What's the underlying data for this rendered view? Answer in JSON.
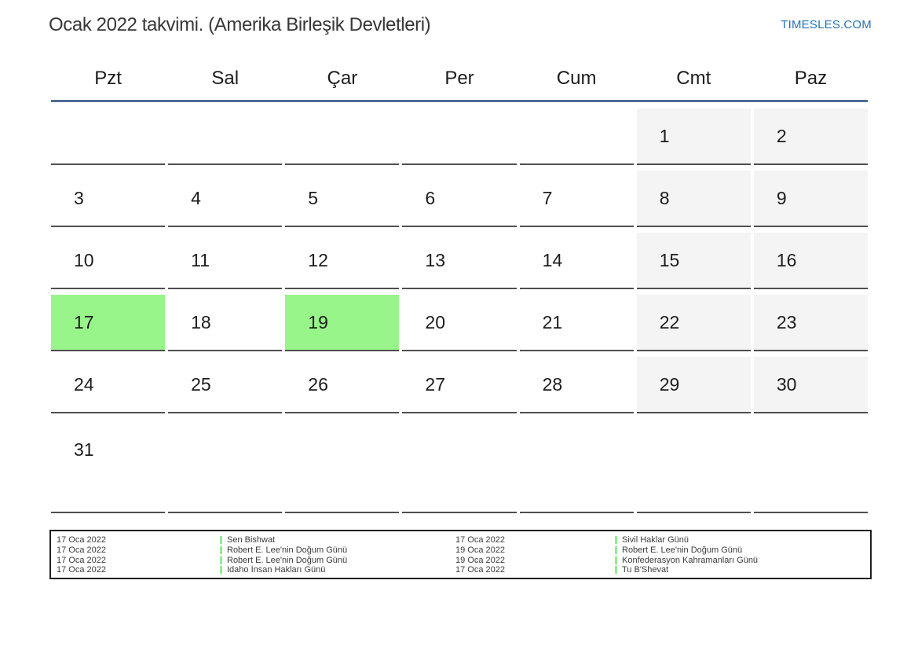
{
  "page": {
    "title": "Ocak 2022 takvimi. (Amerika Birleşik Devletleri)",
    "site_link": "TIMESLES.COM"
  },
  "calendar": {
    "weekday_headers": [
      "Pzt",
      "Sal",
      "Çar",
      "Per",
      "Cum",
      "Cmt",
      "Paz"
    ],
    "weeks": [
      [
        "",
        "",
        "",
        "",
        "",
        "1",
        "2"
      ],
      [
        "3",
        "4",
        "5",
        "6",
        "7",
        "8",
        "9"
      ],
      [
        "10",
        "11",
        "12",
        "13",
        "14",
        "15",
        "16"
      ],
      [
        "17",
        "18",
        "19",
        "20",
        "21",
        "22",
        "23"
      ],
      [
        "24",
        "25",
        "26",
        "27",
        "28",
        "29",
        "30"
      ],
      [
        "31",
        "",
        "",
        "",
        "",
        "",
        ""
      ]
    ],
    "highlighted_days": [
      "17",
      "19"
    ],
    "colors": {
      "highlight_green": "#98f58a",
      "weekend_background": "#f4f4f4",
      "header_line_blue": "#4a6d94",
      "cell_border_gray": "#4f4f4f",
      "link_blue": "#2472b8",
      "legend_marker_green": "#90ee90"
    }
  },
  "legend": {
    "entries_left": [
      {
        "date": "17 Oca 2022",
        "name": "Sen Bishwat"
      },
      {
        "date": "17 Oca 2022",
        "name": "Robert E. Lee'nin Doğum Günü"
      },
      {
        "date": "17 Oca 2022",
        "name": "Robert E. Lee'nin Doğum Günü"
      },
      {
        "date": "17 Oca 2022",
        "name": "Idaho İnsan Hakları Günü"
      }
    ],
    "entries_right": [
      {
        "date": "17 Oca 2022",
        "name": "Sivil Haklar Günü"
      },
      {
        "date": "19 Oca 2022",
        "name": "Robert E. Lee'nin Doğum Günü"
      },
      {
        "date": "19 Oca 2022",
        "name": "Konfederasyon Kahramanları Günü"
      },
      {
        "date": "17 Oca 2022",
        "name": "Tu B'Shevat"
      }
    ]
  }
}
